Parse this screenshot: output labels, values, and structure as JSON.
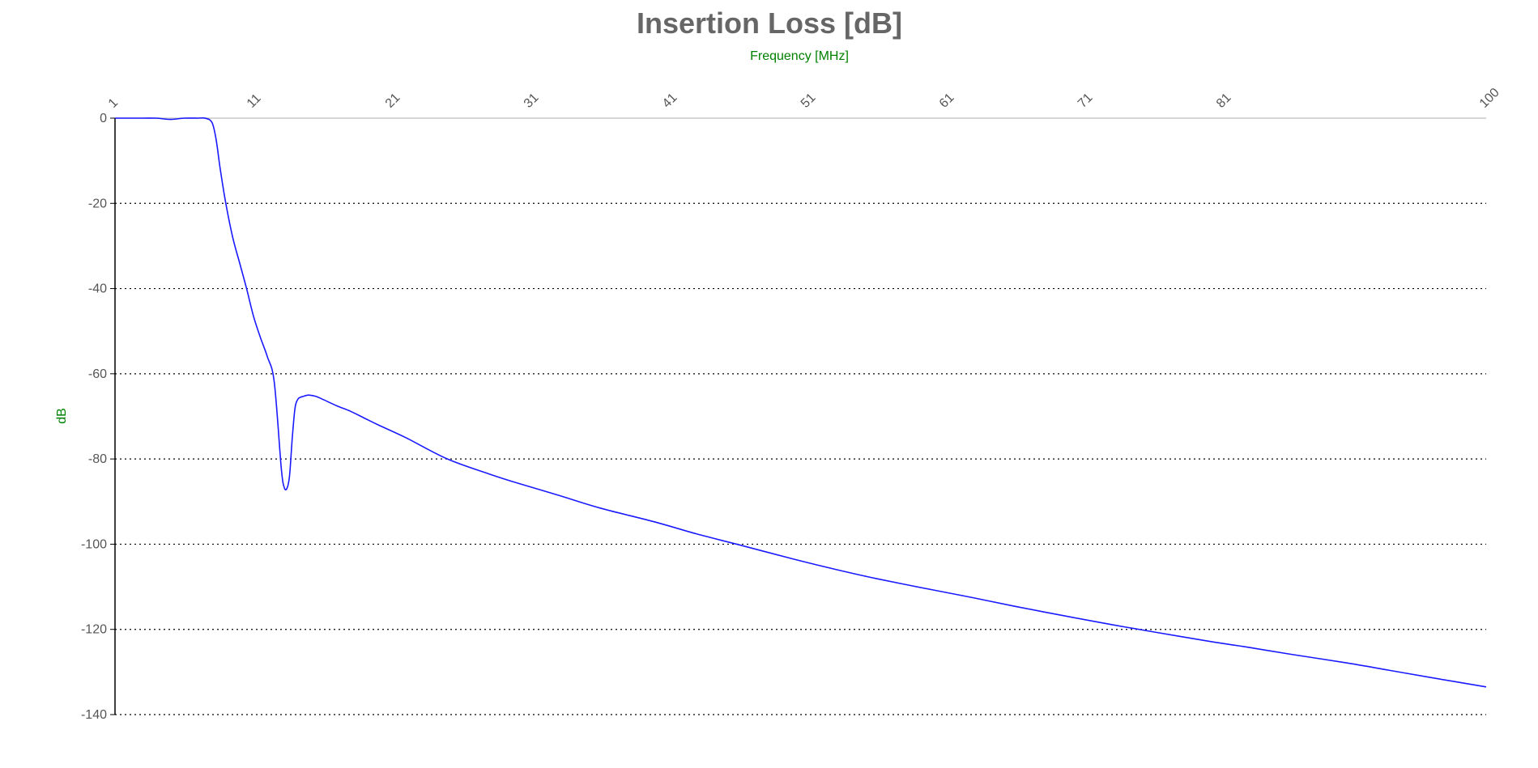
{
  "chart_data": {
    "type": "line",
    "title": "Insertion Loss [dB]",
    "xlabel": "Frequency [MHz]",
    "ylabel": "dB",
    "xlim": [
      1,
      100
    ],
    "ylim": [
      -140,
      0
    ],
    "x_ticks": [
      1,
      11,
      21,
      31,
      41,
      51,
      61,
      71,
      81,
      100
    ],
    "y_ticks": [
      0,
      -20,
      -40,
      -60,
      -80,
      -100,
      -120,
      -140
    ],
    "grid": true,
    "legend": "none",
    "colors": {
      "series": "#1a1aff",
      "title": "#666666",
      "axis_title": "#008000",
      "tick_label": "#555555"
    },
    "series": [
      {
        "x": [
          1,
          2,
          3,
          4,
          5,
          6,
          7,
          7.5,
          8,
          8.3,
          8.6,
          9,
          9.5,
          10,
          10.5,
          11,
          11.5,
          12,
          12.5,
          13,
          13.2,
          13.4,
          13.6,
          13.8,
          14,
          14.2,
          14.4,
          14.6,
          14.8,
          15,
          15.5,
          16,
          17,
          18,
          19,
          20,
          22,
          25,
          28,
          30,
          33,
          36,
          40,
          43,
          46,
          50,
          53,
          56,
          60,
          63,
          66,
          70,
          73,
          76,
          80,
          83,
          86,
          90,
          93,
          96,
          100
        ],
        "y": [
          0,
          0,
          0,
          0,
          -0.3,
          0,
          0,
          0,
          -1,
          -5,
          -12,
          -20,
          -28,
          -34,
          -40,
          -46.5,
          -51.5,
          -56,
          -62,
          -82,
          -86.5,
          -87,
          -84,
          -75,
          -68,
          -66,
          -65.5,
          -65.3,
          -65.1,
          -65,
          -65.3,
          -66,
          -67.5,
          -68.8,
          -70.4,
          -72,
          -75,
          -80,
          -83.5,
          -85.6,
          -88.5,
          -91.5,
          -94.8,
          -97.6,
          -100.1,
          -103.5,
          -105.9,
          -108.1,
          -110.7,
          -112.6,
          -114.6,
          -117.1,
          -118.9,
          -120.6,
          -122.8,
          -124.3,
          -125.9,
          -127.9,
          -129.6,
          -131.3,
          -133.5
        ]
      }
    ]
  }
}
